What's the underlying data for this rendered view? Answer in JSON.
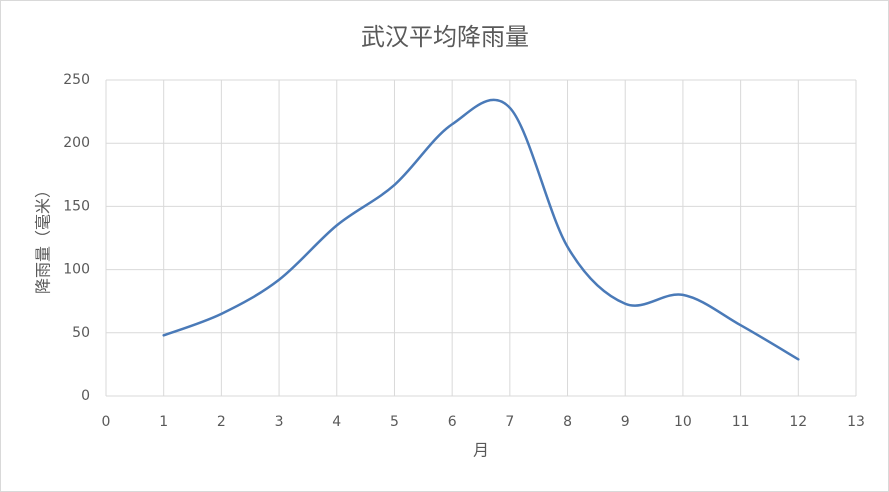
{
  "chart_data": {
    "type": "line",
    "title": "武汉平均降雨量",
    "x_label": "月",
    "y_label": "降雨量（毫米）",
    "x": [
      1,
      2,
      3,
      4,
      5,
      6,
      7,
      8,
      9,
      10,
      11,
      12
    ],
    "series": [
      {
        "name": "降雨量",
        "color": "#4a7ab8",
        "values": [
          48,
          65,
          92,
          135,
          167,
          215,
          228,
          118,
          73,
          80,
          56,
          29
        ]
      }
    ],
    "xlim": [
      0,
      13
    ],
    "xticks": [
      0,
      1,
      2,
      3,
      4,
      5,
      6,
      7,
      8,
      9,
      10,
      11,
      12,
      13
    ],
    "ylim": [
      0,
      250
    ],
    "yticks": [
      0,
      50,
      100,
      150,
      200,
      250
    ],
    "grid": true,
    "smooth": true
  }
}
